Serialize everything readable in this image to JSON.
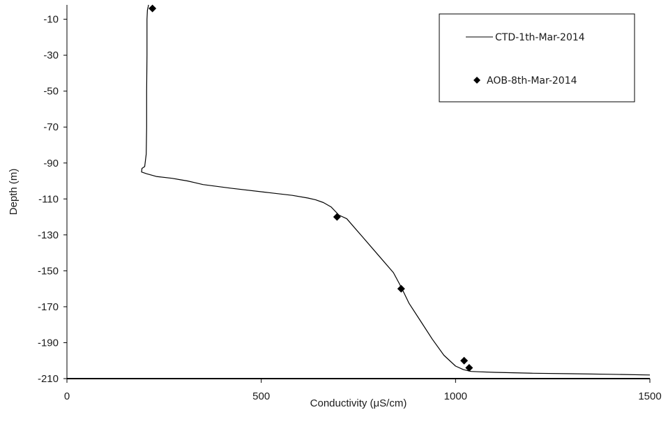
{
  "chart_data": {
    "type": "line",
    "xlabel": "Conductivity (μS/cm)",
    "ylabel": "Depth (m)",
    "xlim": [
      0,
      1500
    ],
    "ylim": [
      -210,
      -2
    ],
    "x_ticks": [
      "0",
      "500",
      "1000",
      "1500"
    ],
    "y_ticks": [
      "-10",
      "-30",
      "-50",
      "-70",
      "-90",
      "-110",
      "-130",
      "-150",
      "-170",
      "-190",
      "-210"
    ],
    "grid": false,
    "legend_position": "top-right",
    "series": [
      {
        "name": "CTD-1th-Mar-2014",
        "marker": "line",
        "color": "#000000",
        "x": [
          210,
          209,
          208,
          207,
          206,
          206,
          205,
          205,
          204,
          200,
          193,
          192,
          205,
          230,
          270,
          310,
          330,
          350,
          420,
          520,
          580,
          620,
          640,
          660,
          680,
          700,
          720,
          760,
          800,
          840,
          860,
          880,
          910,
          940,
          970,
          1000,
          1020,
          1030,
          1040,
          1060,
          1100,
          1200,
          1300,
          1400,
          1500
        ],
        "y": [
          -2,
          -3,
          -4,
          -5,
          -10,
          -30,
          -50,
          -70,
          -85,
          -92,
          -93,
          -95,
          -96,
          -97.5,
          -98.5,
          -100,
          -101,
          -102,
          -104,
          -106.5,
          -108,
          -109.5,
          -110.5,
          -112,
          -114.5,
          -119,
          -121,
          -131,
          -141,
          -151,
          -159,
          -168,
          -178,
          -188,
          -197,
          -203,
          -205,
          -205.5,
          -206,
          -206.2,
          -206.5,
          -207,
          -207.3,
          -207.6,
          -208
        ]
      },
      {
        "name": "AOB-8th-Mar-2014",
        "marker": "diamond",
        "color": "#000000",
        "x": [
          220,
          695,
          860,
          1022,
          1035
        ],
        "y": [
          -4,
          -120,
          -160,
          -200,
          -204
        ]
      }
    ]
  }
}
